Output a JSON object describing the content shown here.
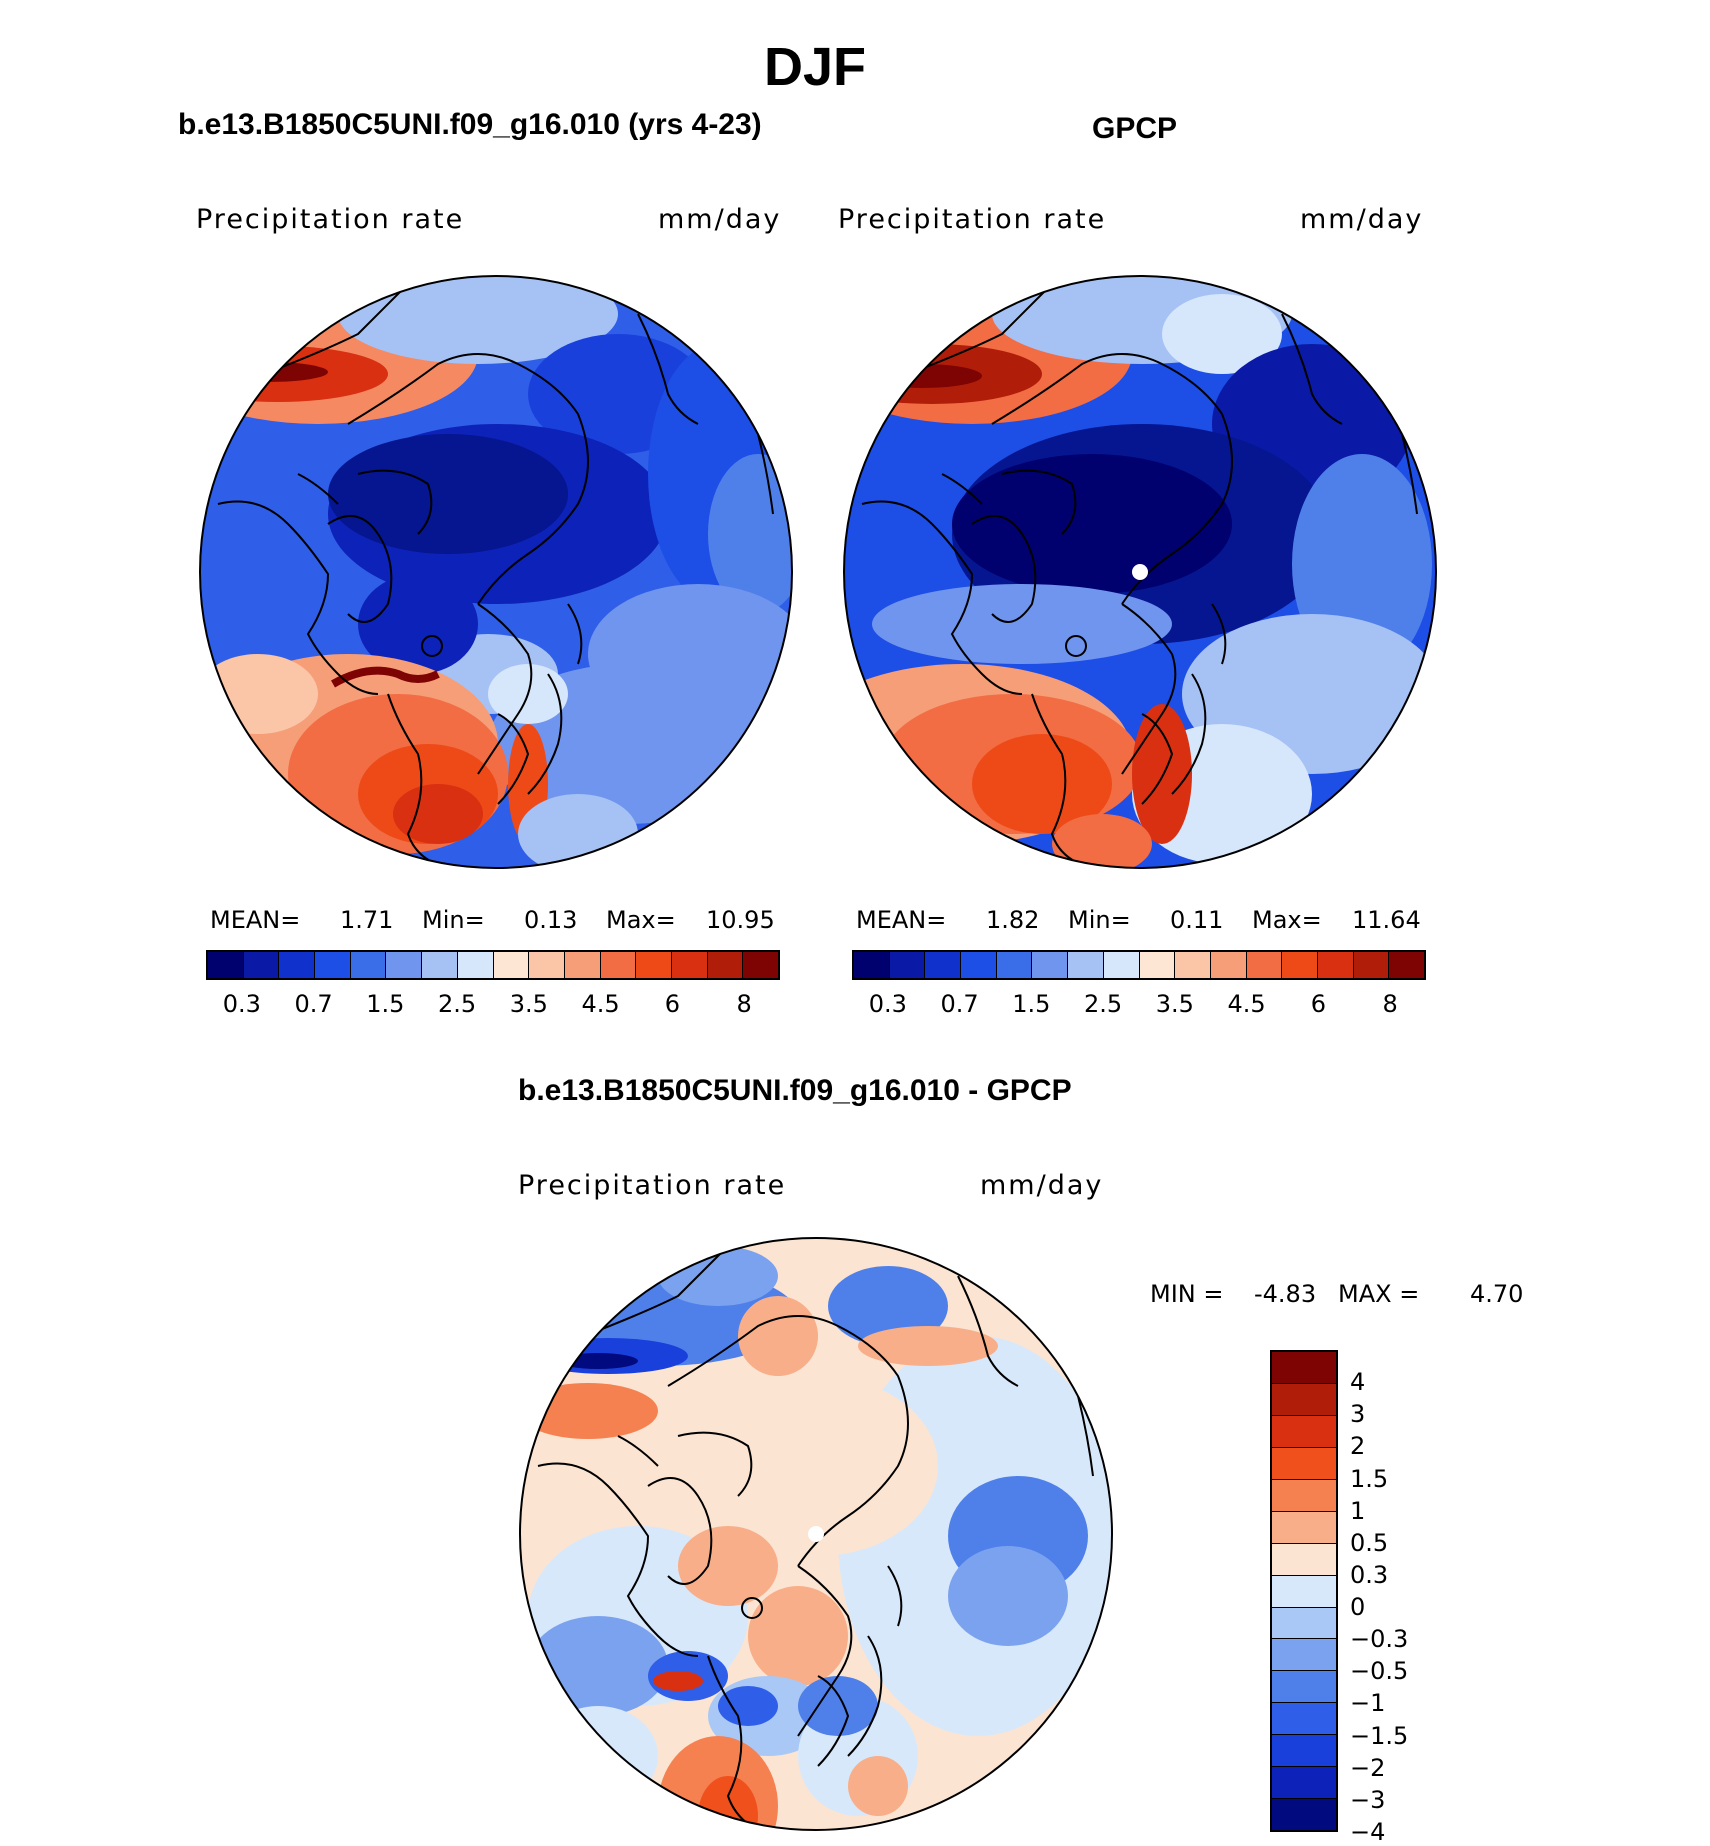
{
  "figure": {
    "title": "DJF",
    "panel_left": {
      "title": "b.e13.B1850C5UNI.f09_g16.010 (yrs 4-23)",
      "variable": "Precipitation  rate",
      "units": "mm/day",
      "mean_label": "MEAN=",
      "mean": "1.71",
      "min_label": "Min=",
      "min": "0.13",
      "max_label": "Max=",
      "max": "10.95"
    },
    "panel_right": {
      "title": "GPCP",
      "variable": "Precipitation  rate",
      "units": "mm/day",
      "mean_label": "MEAN=",
      "mean": "1.82",
      "min_label": "Min=",
      "min": "0.11",
      "max_label": "Max=",
      "max": "11.64"
    },
    "panel_diff": {
      "title": "b.e13.B1850C5UNI.f09_g16.010 - GPCP",
      "variable": "Precipitation  rate",
      "units": "mm/day",
      "min_label": "MIN =",
      "min": "-4.83",
      "max_label": "MAX =",
      "max": "4.70"
    },
    "abs_colorbar": {
      "colors": [
        "#00006e",
        "#0a1aa6",
        "#1131cc",
        "#1d4ee6",
        "#3a6ee8",
        "#6f95ee",
        "#a6c2f4",
        "#d6e6fb",
        "#fde6d4",
        "#fbc6a8",
        "#f59e78",
        "#f26c44",
        "#ee4a18",
        "#d83010",
        "#b01e0a",
        "#7e0404"
      ],
      "tick_labels": [
        "0.3",
        "0.7",
        "1.5",
        "2.5",
        "3.5",
        "4.5",
        "6",
        "8"
      ]
    },
    "diff_colorbar": {
      "colors": [
        "#7e0404",
        "#b01e0a",
        "#d83010",
        "#f0501c",
        "#f58050",
        "#f8ae88",
        "#fbe4d2",
        "#d8e8fb",
        "#aac8f5",
        "#7ba2ee",
        "#4f80ea",
        "#2f5ee8",
        "#1a40dc",
        "#0c22b8",
        "#020a80"
      ],
      "tick_labels": [
        "4",
        "3",
        "2",
        "1.5",
        "1",
        "0.5",
        "0.3",
        "0",
        "−0.3",
        "−0.5",
        "−1",
        "−1.5",
        "−2",
        "−3",
        "−4"
      ]
    }
  }
}
